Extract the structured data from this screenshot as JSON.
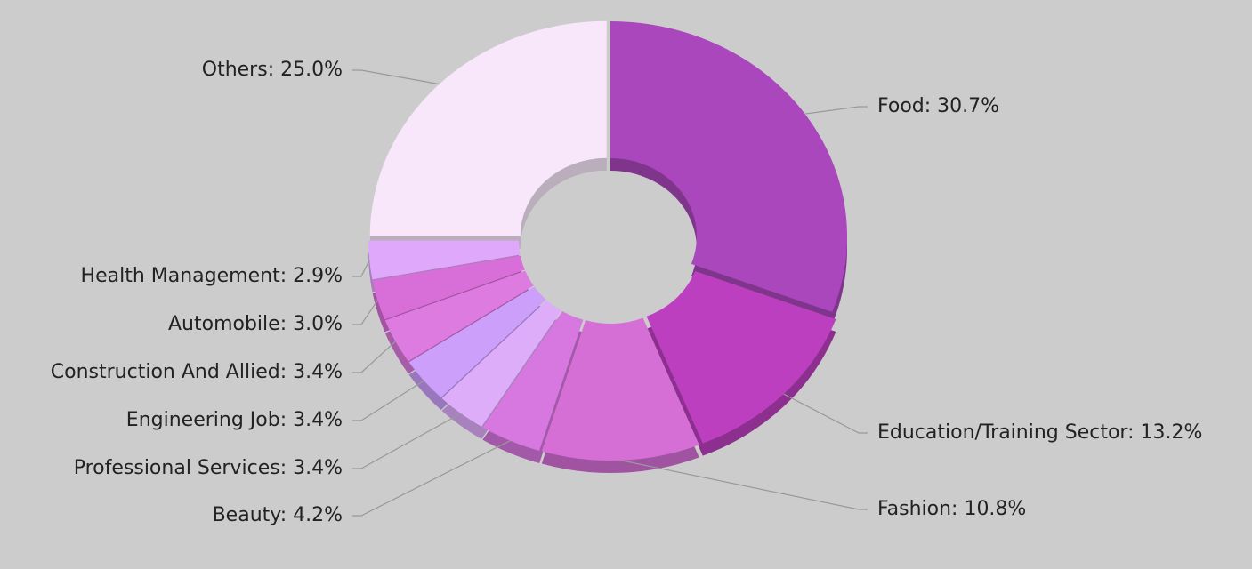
{
  "chart_data": {
    "type": "donut",
    "values": [
      30.7,
      13.2,
      10.8,
      4.2,
      3.4,
      3.4,
      3.4,
      3.0,
      2.9,
      25.0
    ],
    "value_labels": [
      "Food: 30.7%",
      "Education/Training Sector: 13.2%",
      "Fashion: 10.8%",
      "Beauty: 4.2%",
      "Professional Services: 3.4%",
      "Engineering Job: 3.4%",
      "Construction And Allied: 3.4%",
      "Automobile: 3.0%",
      "Health Management: 2.9%",
      "Others: 25.0%"
    ],
    "colors": [
      "#aa47bc",
      "#bb3fbf",
      "#d56fd6",
      "#d777e0",
      "#deadfa",
      "#cc9ffa",
      "#de7be0",
      "#d86fd8",
      "#dfa8fa",
      "#f8e6fa"
    ]
  }
}
